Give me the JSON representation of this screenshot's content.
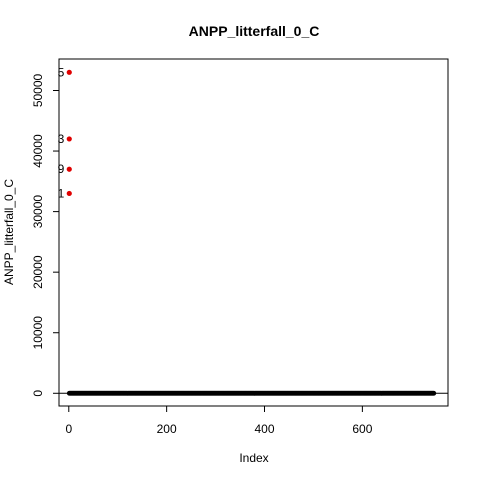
{
  "chart_data": {
    "type": "scatter",
    "title": "ANPP_litterfall_0_C",
    "xlabel": "Index",
    "ylabel": "ANPP_litterfall_0_C",
    "xlim": [
      -20,
      775
    ],
    "ylim": [
      -2100,
      55200
    ],
    "xticks": [
      0,
      200,
      400,
      600
    ],
    "yticks": [
      0,
      10000,
      20000,
      30000,
      40000,
      50000
    ],
    "grid": false,
    "legend": "none",
    "baseline_series": {
      "x_start": 1,
      "x_end": 746,
      "y": 0,
      "color": "#000000"
    },
    "highlighted_points": [
      {
        "label": "5",
        "x": 1,
        "y": 53000
      },
      {
        "label": "3",
        "x": 1,
        "y": 42000
      },
      {
        "label": "9",
        "x": 1,
        "y": 37000
      },
      {
        "label": "1",
        "x": 1,
        "y": 33000
      }
    ],
    "highlight_color": "#e00000",
    "reference_line_y": 0
  }
}
